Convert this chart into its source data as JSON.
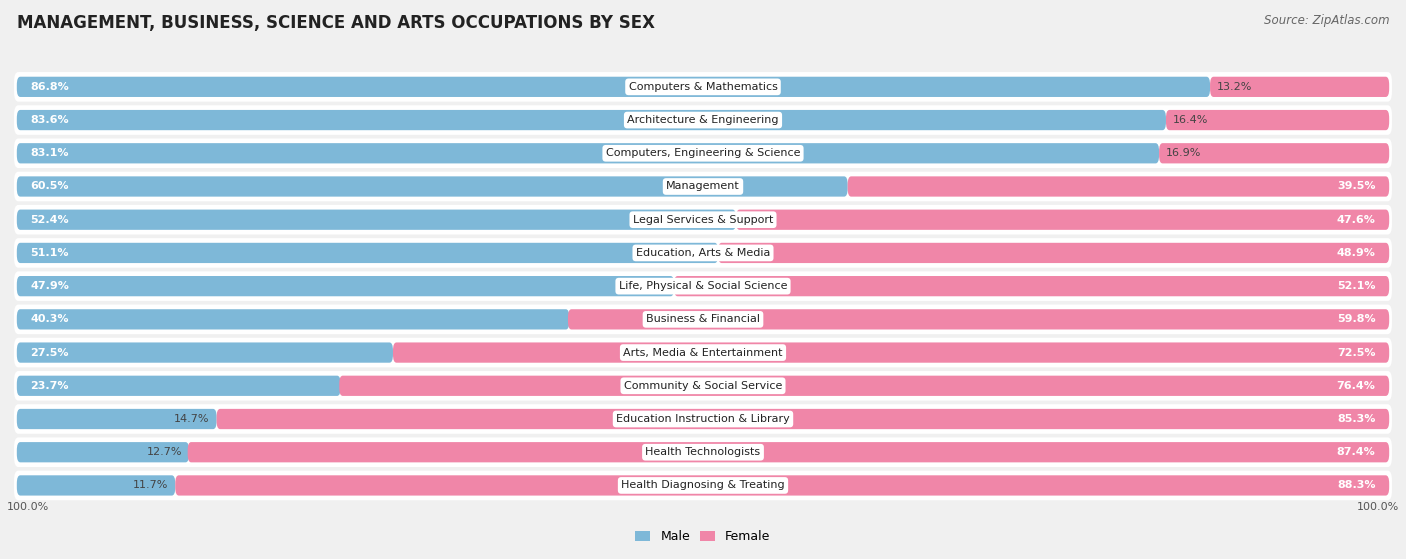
{
  "title": "MANAGEMENT, BUSINESS, SCIENCE AND ARTS OCCUPATIONS BY SEX",
  "source": "Source: ZipAtlas.com",
  "categories": [
    "Computers & Mathematics",
    "Architecture & Engineering",
    "Computers, Engineering & Science",
    "Management",
    "Legal Services & Support",
    "Education, Arts & Media",
    "Life, Physical & Social Science",
    "Business & Financial",
    "Arts, Media & Entertainment",
    "Community & Social Service",
    "Education Instruction & Library",
    "Health Technologists",
    "Health Diagnosing & Treating"
  ],
  "male_pct": [
    86.8,
    83.6,
    83.1,
    60.5,
    52.4,
    51.1,
    47.9,
    40.3,
    27.5,
    23.7,
    14.7,
    12.7,
    11.7
  ],
  "female_pct": [
    13.2,
    16.4,
    16.9,
    39.5,
    47.6,
    48.9,
    52.1,
    59.8,
    72.5,
    76.4,
    85.3,
    87.4,
    88.3
  ],
  "male_color": "#7eb8d8",
  "female_color": "#f086a8",
  "bg_color": "#f0f0f0",
  "bar_bg_color": "#ffffff",
  "title_fontsize": 12,
  "source_fontsize": 8.5,
  "bar_label_fontsize": 8,
  "cat_label_fontsize": 8,
  "bar_height": 0.65,
  "inside_label_threshold": 18
}
